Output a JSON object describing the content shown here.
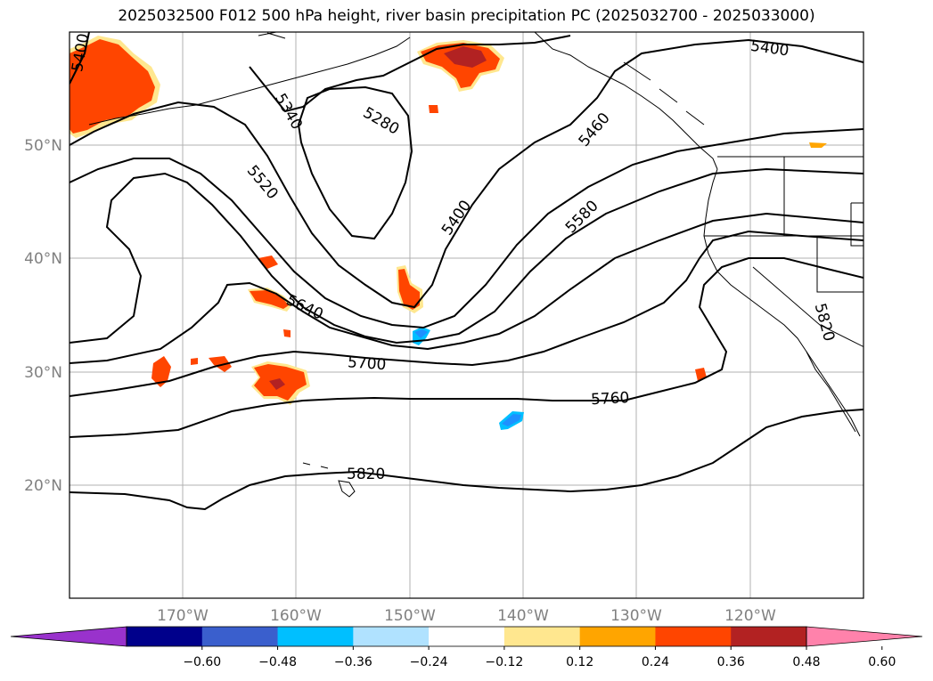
{
  "title": "2025032500 F012 500 hPa height, river basin precipitation PC (2025032700 - 2025033000)",
  "lon_labels": [
    "170°W",
    "160°W",
    "150°W",
    "140°W",
    "130°W",
    "120°W"
  ],
  "lat_labels": [
    "50°N",
    "40°N",
    "30°N",
    "20°N"
  ],
  "contour_labels": [
    "5400",
    "5340",
    "5280",
    "5520",
    "5400",
    "5460",
    "5580",
    "5640",
    "5700",
    "5760",
    "5820",
    "5400",
    "5820"
  ],
  "colorbar": {
    "ticks": [
      "−0.60",
      "−0.48",
      "−0.36",
      "−0.24",
      "−0.12",
      "0.12",
      "0.24",
      "0.36",
      "0.48",
      "0.60"
    ],
    "colors": [
      "#9932cc",
      "#00008b",
      "#3a5fcd",
      "#00bfff",
      "#b0e2ff",
      "#ffffff",
      "#ffe78f",
      "#ffa500",
      "#ff4500",
      "#b22222",
      "#ff82ab"
    ]
  },
  "map_colors": {
    "positive_low": "#ffe78f",
    "positive_mid": "#ffa500",
    "positive_high": "#ff4500",
    "positive_max": "#b22222",
    "negative": "#1e90ff",
    "negative_light": "#00bfff"
  }
}
